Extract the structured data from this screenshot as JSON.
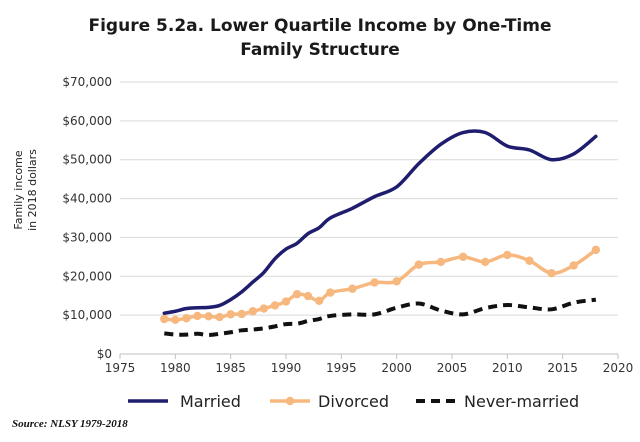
{
  "chart_data": {
    "type": "line",
    "title_line1": "Figure 5.2a. Lower Quartile Income by One-Time",
    "title_line2": "Family Structure",
    "ylabel_line1": "Family income",
    "ylabel_line2": "in 2018 dollars",
    "xlabel": "",
    "xlim": [
      1975,
      2020
    ],
    "ylim": [
      0,
      70000
    ],
    "x_ticks": [
      1975,
      1980,
      1985,
      1990,
      1995,
      2000,
      2005,
      2010,
      2015,
      2020
    ],
    "y_ticks": [
      0,
      10000,
      20000,
      30000,
      40000,
      50000,
      60000,
      70000
    ],
    "y_tick_labels": [
      "$0",
      "$10,000",
      "$20,000",
      "$30,000",
      "$40,000",
      "$50,000",
      "$60,000",
      "$70,000"
    ],
    "grid": "horizontal",
    "legend_position": "bottom",
    "series": [
      {
        "name": "Married",
        "color": "#1f1d6e",
        "style": "solid",
        "markers": false,
        "x": [
          1979,
          1980,
          1981,
          1982,
          1983,
          1984,
          1985,
          1986,
          1987,
          1988,
          1989,
          1990,
          1991,
          1992,
          1993,
          1994,
          1996,
          1998,
          2000,
          2002,
          2004,
          2006,
          2008,
          2010,
          2012,
          2014,
          2016,
          2018
        ],
        "y": [
          10500,
          11000,
          11700,
          11900,
          12000,
          12500,
          14000,
          16000,
          18500,
          21000,
          24500,
          27000,
          28500,
          31000,
          32500,
          35000,
          37500,
          40500,
          43000,
          49000,
          54000,
          57000,
          57000,
          53500,
          52500,
          50000,
          51500,
          56000
        ]
      },
      {
        "name": "Divorced",
        "color": "#f7b87f",
        "style": "solid",
        "markers": true,
        "x": [
          1979,
          1980,
          1981,
          1982,
          1983,
          1984,
          1985,
          1986,
          1987,
          1988,
          1989,
          1990,
          1991,
          1992,
          1993,
          1994,
          1996,
          1998,
          2000,
          2002,
          2004,
          2006,
          2008,
          2010,
          2012,
          2014,
          2016,
          2018
        ],
        "y": [
          9000,
          8800,
          9200,
          9800,
          9700,
          9500,
          10200,
          10300,
          11000,
          11700,
          12500,
          13500,
          15400,
          14900,
          13700,
          15800,
          16800,
          18400,
          18700,
          23000,
          23700,
          25000,
          23700,
          25500,
          24000,
          20800,
          22800,
          26800
        ]
      },
      {
        "name": "Never-married",
        "color": "#111111",
        "style": "dashed",
        "markers": false,
        "x": [
          1979,
          1980,
          1981,
          1982,
          1983,
          1984,
          1985,
          1986,
          1987,
          1988,
          1989,
          1990,
          1991,
          1992,
          1993,
          1994,
          1996,
          1998,
          2000,
          2002,
          2004,
          2006,
          2008,
          2010,
          2012,
          2014,
          2016,
          2018
        ],
        "y": [
          5300,
          5000,
          5000,
          5200,
          4900,
          5200,
          5600,
          6100,
          6300,
          6600,
          7100,
          7700,
          7800,
          8500,
          9000,
          9800,
          10200,
          10200,
          11900,
          13000,
          11200,
          10200,
          11800,
          12600,
          12000,
          11500,
          13200,
          14000
        ]
      }
    ]
  },
  "source_text": "Source: NLSY 1979-2018"
}
